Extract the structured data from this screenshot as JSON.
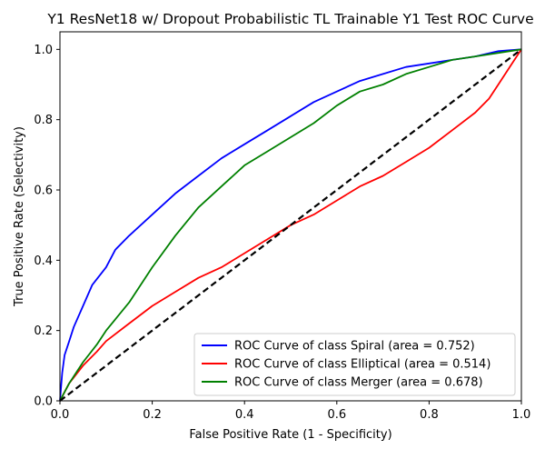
{
  "chart_data": {
    "type": "line",
    "title": "Y1 ResNet18 w/ Dropout Probabilistic TL Trainable Y1 Test ROC Curve",
    "xlabel": "False Positive Rate (1 - Specificity)",
    "ylabel": "True Positive Rate (Selectivity)",
    "xlim": [
      0.0,
      1.0
    ],
    "ylim": [
      0.0,
      1.05
    ],
    "xticks": [
      "0.0",
      "0.2",
      "0.4",
      "0.6",
      "0.8",
      "1.0"
    ],
    "yticks": [
      "0.0",
      "0.2",
      "0.4",
      "0.6",
      "0.8",
      "1.0"
    ],
    "xtick_values": [
      0.0,
      0.2,
      0.4,
      0.6,
      0.8,
      1.0
    ],
    "ytick_values": [
      0.0,
      0.2,
      0.4,
      0.6,
      0.8,
      1.0
    ],
    "grid": false,
    "legend_position": "lower-right",
    "series": [
      {
        "name": "ROC Curve of class Spiral (area = 0.752)",
        "color": "#0000ff",
        "x": [
          0.0,
          0.005,
          0.01,
          0.02,
          0.03,
          0.05,
          0.07,
          0.1,
          0.12,
          0.15,
          0.2,
          0.25,
          0.3,
          0.35,
          0.4,
          0.45,
          0.5,
          0.55,
          0.6,
          0.65,
          0.7,
          0.75,
          0.8,
          0.85,
          0.9,
          0.95,
          1.0
        ],
        "y": [
          0.0,
          0.08,
          0.13,
          0.17,
          0.21,
          0.27,
          0.33,
          0.38,
          0.43,
          0.47,
          0.53,
          0.59,
          0.64,
          0.69,
          0.73,
          0.77,
          0.81,
          0.85,
          0.88,
          0.91,
          0.93,
          0.95,
          0.96,
          0.97,
          0.98,
          0.995,
          1.0
        ]
      },
      {
        "name": "ROC Curve of class Elliptical (area = 0.514)",
        "color": "#ff0000",
        "x": [
          0.0,
          0.02,
          0.05,
          0.08,
          0.1,
          0.15,
          0.2,
          0.25,
          0.3,
          0.35,
          0.4,
          0.45,
          0.5,
          0.55,
          0.6,
          0.65,
          0.7,
          0.75,
          0.8,
          0.85,
          0.9,
          0.93,
          0.95,
          0.98,
          1.0
        ],
        "y": [
          0.0,
          0.05,
          0.1,
          0.14,
          0.17,
          0.22,
          0.27,
          0.31,
          0.35,
          0.38,
          0.42,
          0.46,
          0.5,
          0.53,
          0.57,
          0.61,
          0.64,
          0.68,
          0.72,
          0.77,
          0.82,
          0.86,
          0.9,
          0.96,
          1.0
        ]
      },
      {
        "name": "ROC Curve of class Merger (area = 0.678)",
        "color": "#008000",
        "x": [
          0.0,
          0.02,
          0.05,
          0.08,
          0.1,
          0.15,
          0.2,
          0.25,
          0.3,
          0.35,
          0.4,
          0.45,
          0.5,
          0.55,
          0.6,
          0.65,
          0.7,
          0.75,
          0.8,
          0.85,
          0.9,
          0.95,
          1.0
        ],
        "y": [
          0.0,
          0.05,
          0.11,
          0.16,
          0.2,
          0.28,
          0.38,
          0.47,
          0.55,
          0.61,
          0.67,
          0.71,
          0.75,
          0.79,
          0.84,
          0.88,
          0.9,
          0.93,
          0.95,
          0.97,
          0.98,
          0.99,
          1.0
        ]
      }
    ],
    "reference_line": {
      "style": "dashed",
      "color": "#000000",
      "x": [
        0.0,
        1.0
      ],
      "y": [
        0.0,
        1.0
      ]
    }
  }
}
